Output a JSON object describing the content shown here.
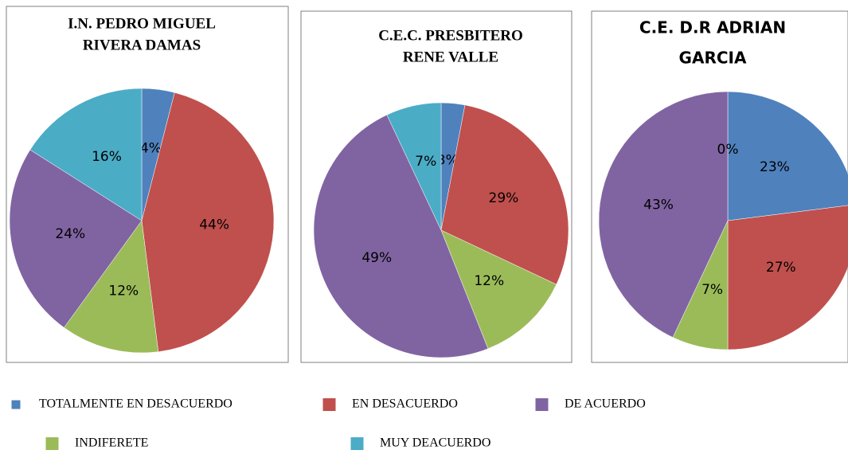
{
  "chart_data": [
    {
      "type": "pie",
      "title": [
        "I.N. PEDRO MIGUEL",
        "RIVERA DAMAS"
      ],
      "values": [
        4,
        44,
        12,
        24,
        16
      ],
      "value_labels": [
        "4%",
        "44%",
        "12%",
        "24%",
        "16%"
      ]
    },
    {
      "type": "pie",
      "title": [
        "C.E.C. PRESBITERO",
        "RENE VALLE"
      ],
      "values": [
        3,
        29,
        12,
        49,
        7
      ],
      "value_labels": [
        "3%",
        "29%",
        "12%",
        "49%",
        "7%"
      ]
    },
    {
      "type": "pie",
      "title": [
        "C.E. D.R ADRIAN",
        "GARCIA"
      ],
      "values": [
        23,
        27,
        7,
        43,
        0
      ],
      "value_labels": [
        "23%",
        "27%",
        "7%",
        "43%",
        "0%"
      ]
    }
  ],
  "legend": {
    "categories": [
      "TOTALMENTE EN DESACUERDO",
      "EN DESACUERDO",
      "INDIFERETE",
      "DE ACUERDO",
      "MUY DEACUERDO"
    ],
    "colors": [
      "#4f81bd",
      "#c0504d",
      "#9bbb59",
      "#8064a2",
      "#4bacc6"
    ]
  }
}
